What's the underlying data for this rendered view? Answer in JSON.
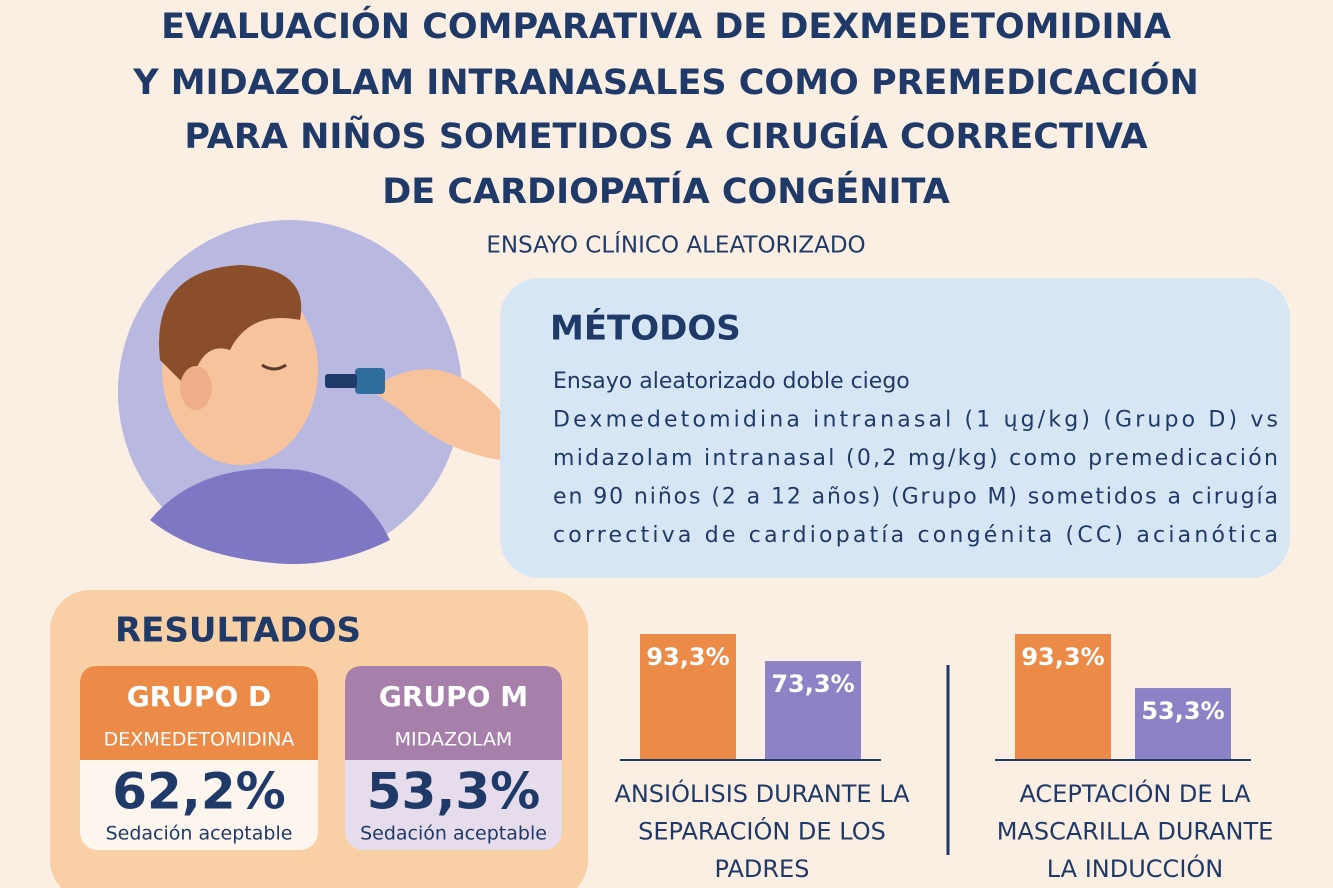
{
  "header": {
    "title_lines": [
      "EVALUACIÓN COMPARATIVA DE DEXMEDETOMIDINA",
      "Y MIDAZOLAM INTRANASALES COMO PREMEDICACIÓN",
      "PARA NIÑOS SOMETIDOS A CIRUGÍA CORRECTIVA",
      "DE CARDIOPATÍA CONGÉNITA"
    ],
    "subtitle": "ENSAYO CLÍNICO ALEATORIZADO"
  },
  "methods": {
    "heading": "MÉTODOS",
    "lines": [
      "Ensayo aleatorizado doble ciego",
      "Dexmedetomidina intranasal (1 ųg/kg) (Grupo D) vs",
      "midazolam intranasal (0,2 mg/kg) como premedicación",
      "en 90 niños (2 a 12 años) (Grupo M) sometidos a cirugía",
      "correctiva de cardiopatía congénita (CC) acianótica"
    ]
  },
  "results": {
    "heading": "RESULTADOS",
    "groups": [
      {
        "name": "GRUPO D",
        "drug": "DEXMEDETOMIDINA",
        "value": "62,2%",
        "note": "Sedación aceptable",
        "color": "#ec8a48",
        "light": "#fdf6ee"
      },
      {
        "name": "GRUPO M",
        "drug": "MIDAZOLAM",
        "value": "53,3%",
        "note": "Sedación aceptable",
        "color": "#a77fab",
        "light": "#e7dcec"
      }
    ]
  },
  "comparisons": [
    {
      "values": [
        93.3,
        73.3
      ],
      "value_labels": [
        "93,3%",
        "73,3%"
      ],
      "colors": [
        "#ec8a48",
        "#8b83c6"
      ],
      "caption_lines": [
        "ANSIÓLISIS DURANTE LA",
        "SEPARACIÓN DE LOS",
        "PADRES"
      ]
    },
    {
      "values": [
        93.3,
        53.3
      ],
      "value_labels": [
        "93,3%",
        "53,3%"
      ],
      "colors": [
        "#ec8a48",
        "#8b83c6"
      ],
      "caption_lines": [
        "ACEPTACIÓN DE LA",
        "MASCARILLA DURANTE",
        "LA INDUCCIÓN"
      ]
    }
  ]
}
